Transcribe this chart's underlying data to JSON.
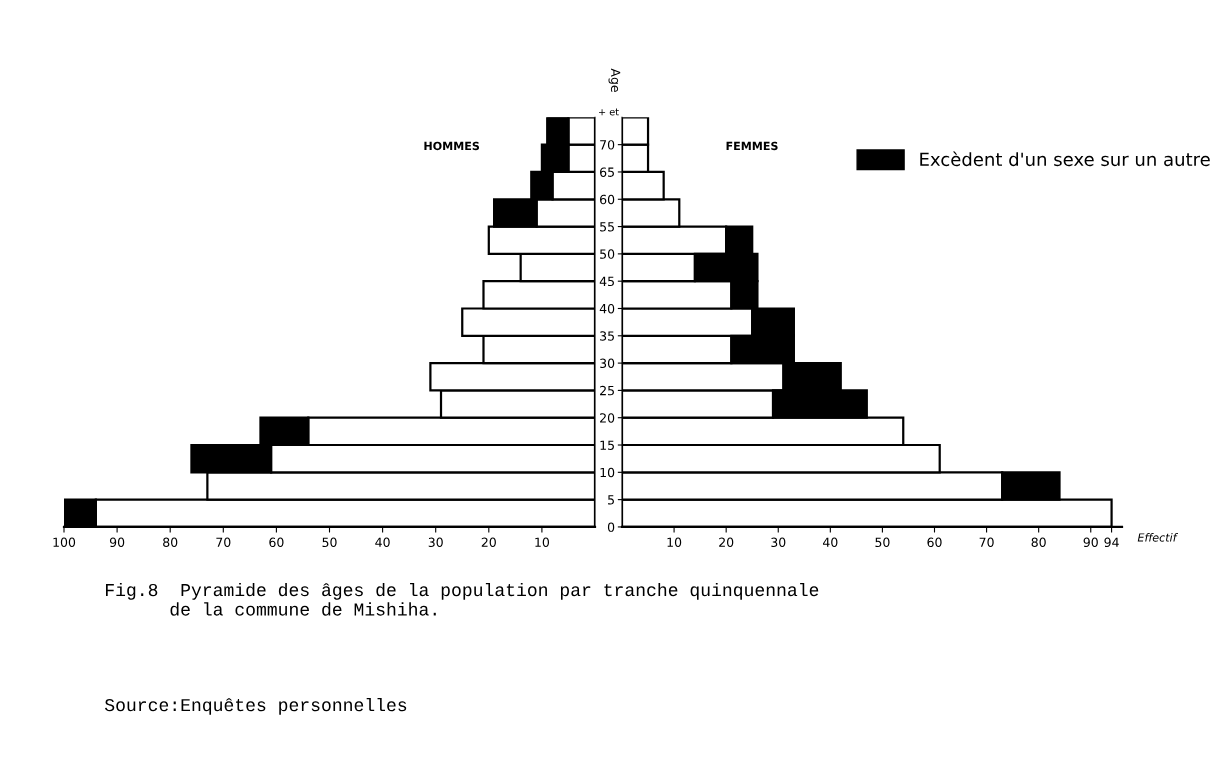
{
  "chart_data": [
    {
      "type": "bar",
      "orientation": "horizontal",
      "stacked": true,
      "title": "HOMMES",
      "x": [
        2.5,
        7.5,
        12.5,
        17.5,
        22.5,
        27.5,
        32.5,
        37.5,
        42.5,
        47.5,
        52.5,
        57.5,
        62.5,
        67.5,
        72.5
      ],
      "series": [
        {
          "color": "#ffffff",
          "values": [
            94,
            73,
            61,
            54,
            29,
            31,
            21,
            25,
            21,
            14,
            20,
            11,
            8,
            5,
            5
          ]
        },
        {
          "color": "#000000",
          "values": [
            6,
            null,
            15,
            9,
            null,
            null,
            null,
            null,
            null,
            null,
            null,
            8,
            4,
            5,
            4
          ]
        }
      ],
      "xlim": [
        100,
        0
      ],
      "xticks": [
        100,
        90,
        80,
        70,
        60,
        50,
        40,
        30,
        20,
        10
      ],
      "ylim": [
        0,
        75
      ],
      "yticks": [
        0,
        5,
        10,
        15,
        20,
        25,
        30,
        35,
        40,
        45,
        50,
        55,
        60,
        65,
        70
      ],
      "tick_labels": "x",
      "grid": false,
      "legend": false,
      "annotations": [
        "Fig.8  Pyramide des âges de la population par tranche quinquennale\n      de la commune de Mishiha.",
        "Source:Enquêtes personnelles"
      ]
    },
    {
      "type": "bar",
      "orientation": "horizontal",
      "stacked": true,
      "title": "FEMMES",
      "xlabel": "Effectif",
      "ylabel": "Age",
      "x": [
        2.5,
        7.5,
        12.5,
        17.5,
        22.5,
        27.5,
        32.5,
        37.5,
        42.5,
        47.5,
        52.5,
        57.5,
        62.5,
        67.5,
        72.5
      ],
      "series": [
        {
          "color": "#ffffff",
          "values": [
            94,
            73,
            61,
            54,
            29,
            31,
            21,
            25,
            21,
            14,
            20,
            11,
            8,
            5,
            5
          ]
        },
        {
          "name": "Excèdent d'un sexe sur un autre",
          "color": "#000000",
          "values": [
            null,
            11,
            null,
            null,
            18,
            11,
            12,
            8,
            5,
            12,
            5,
            null,
            null,
            null,
            null
          ]
        }
      ],
      "xlim": [
        0,
        96
      ],
      "xticks": [
        10,
        20,
        30,
        40,
        50,
        60,
        70,
        80,
        90,
        94
      ],
      "ylim": [
        0,
        75
      ],
      "yticks": [
        0,
        5,
        10,
        15,
        20,
        25,
        30,
        35,
        40,
        45,
        50,
        55,
        60,
        65,
        70
      ],
      "grid": false,
      "legend": "top right",
      "annotations": [
        "+ et"
      ]
    }
  ]
}
